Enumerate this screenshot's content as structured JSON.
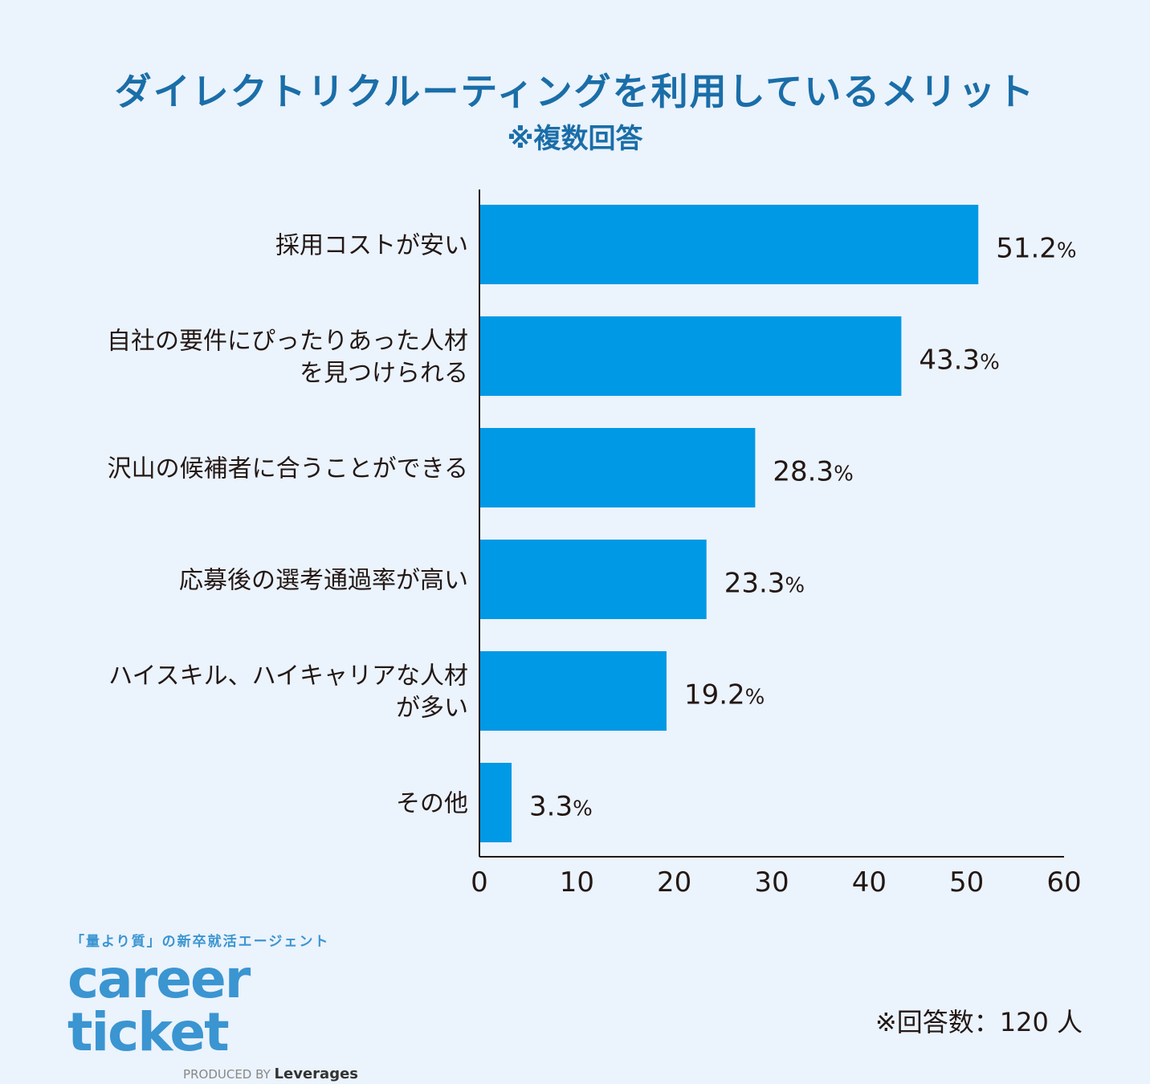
{
  "title": "ダイレクトリクルーティングを利用しているメリット",
  "subtitle": "※複数回答",
  "chart_data": {
    "type": "bar",
    "orientation": "horizontal",
    "categories": [
      [
        "採用コストが安い"
      ],
      [
        "自社の要件にぴったりあった人材",
        "を見つけられる"
      ],
      [
        "沢山の候補者に合うことができる"
      ],
      [
        "応募後の選考通過率が高い"
      ],
      [
        "ハイスキル、ハイキャリアな人材",
        "が多い"
      ],
      [
        "その他"
      ]
    ],
    "values": [
      51.2,
      43.3,
      28.3,
      23.3,
      19.2,
      3.3
    ],
    "value_labels": [
      "51.2",
      "43.3",
      "28.3",
      "23.3",
      "19.2",
      "3.3"
    ],
    "value_suffix": "%",
    "xlim": [
      0,
      60
    ],
    "xticks": [
      0,
      10,
      20,
      30,
      40,
      50,
      60
    ],
    "bar_color": "#0099e5",
    "grid": false
  },
  "logo": {
    "tagline": "「量より質」の新卒就活エージェント",
    "name": "career ticket",
    "produced_by": "PRODUCED BY",
    "company": "Leverages"
  },
  "footnote": "※回答数：120 人"
}
